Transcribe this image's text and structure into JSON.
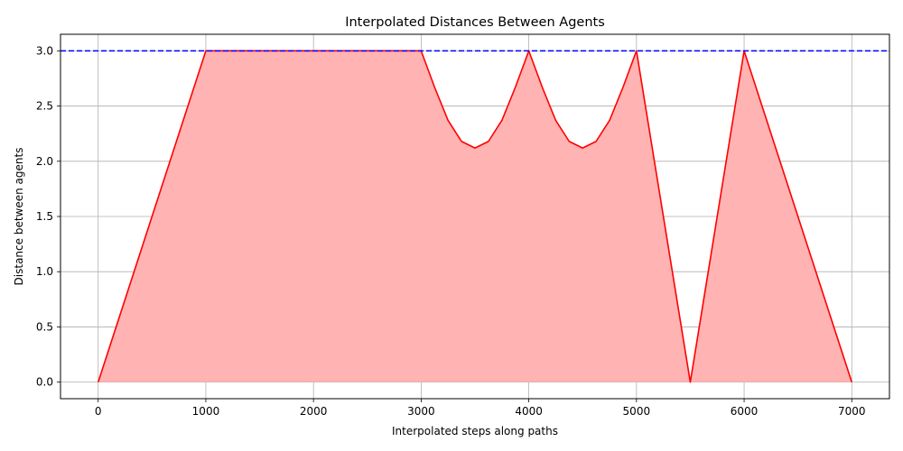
{
  "chart_data": {
    "type": "area",
    "title": "Interpolated Distances Between Agents",
    "xlabel": "Interpolated steps along paths",
    "ylabel": "Distance between agents",
    "xlim": [
      -350,
      7350
    ],
    "ylim": [
      -0.15,
      3.15
    ],
    "xticks": [
      0,
      1000,
      2000,
      3000,
      4000,
      5000,
      6000,
      7000
    ],
    "yticks": [
      0.0,
      0.5,
      1.0,
      1.5,
      2.0,
      2.5,
      3.0
    ],
    "xtick_labels": [
      "0",
      "1000",
      "2000",
      "3000",
      "4000",
      "5000",
      "6000",
      "7000"
    ],
    "ytick_labels": [
      "0.0",
      "0.5",
      "1.0",
      "1.5",
      "2.0",
      "2.5",
      "3.0"
    ],
    "grid": true,
    "threshold": {
      "y": 3.0,
      "style": "dashed",
      "color": "#0000ff"
    },
    "series": [
      {
        "x": [
          0,
          1000,
          1000,
          3000,
          3000,
          3125,
          3250,
          3375,
          3500,
          3625,
          3750,
          3875,
          4000,
          4125,
          4250,
          4375,
          4500,
          4625,
          4750,
          4875,
          5000,
          5500,
          6000,
          7000
        ],
        "y": [
          0.0,
          3.0,
          3.0,
          3.0,
          3.0,
          2.67,
          2.37,
          2.18,
          2.12,
          2.18,
          2.37,
          2.67,
          3.0,
          2.67,
          2.37,
          2.18,
          2.12,
          2.18,
          2.37,
          2.67,
          3.0,
          0.0,
          3.0,
          0.0
        ],
        "line_color": "#ff0000",
        "fill_color": "#ffb3b3"
      }
    ]
  }
}
